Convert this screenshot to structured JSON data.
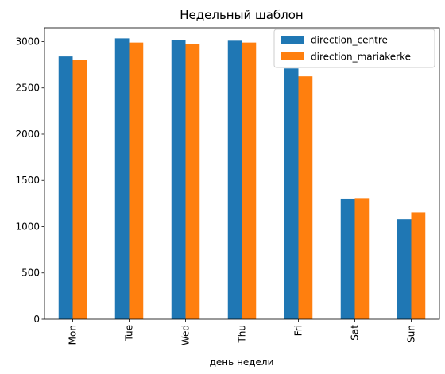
{
  "chart_data": {
    "type": "bar",
    "title": "Недельный шаблон",
    "xlabel": "день недели",
    "ylabel": "",
    "categories": [
      "Mon",
      "Tue",
      "Wed",
      "Thu",
      "Fri",
      "Sat",
      "Sun"
    ],
    "series": [
      {
        "name": "direction_centre",
        "color": "#1f77b4",
        "values": [
          2840,
          3035,
          3015,
          3010,
          2710,
          1305,
          1080
        ]
      },
      {
        "name": "direction_mariakerke",
        "color": "#ff7f0e",
        "values": [
          2805,
          2990,
          2975,
          2990,
          2625,
          1310,
          1155
        ]
      }
    ],
    "ylim": [
      0,
      3150
    ],
    "yticks": [
      0,
      500,
      1000,
      1500,
      2000,
      2500,
      3000
    ],
    "grid": false,
    "legend_position": "top-right"
  }
}
